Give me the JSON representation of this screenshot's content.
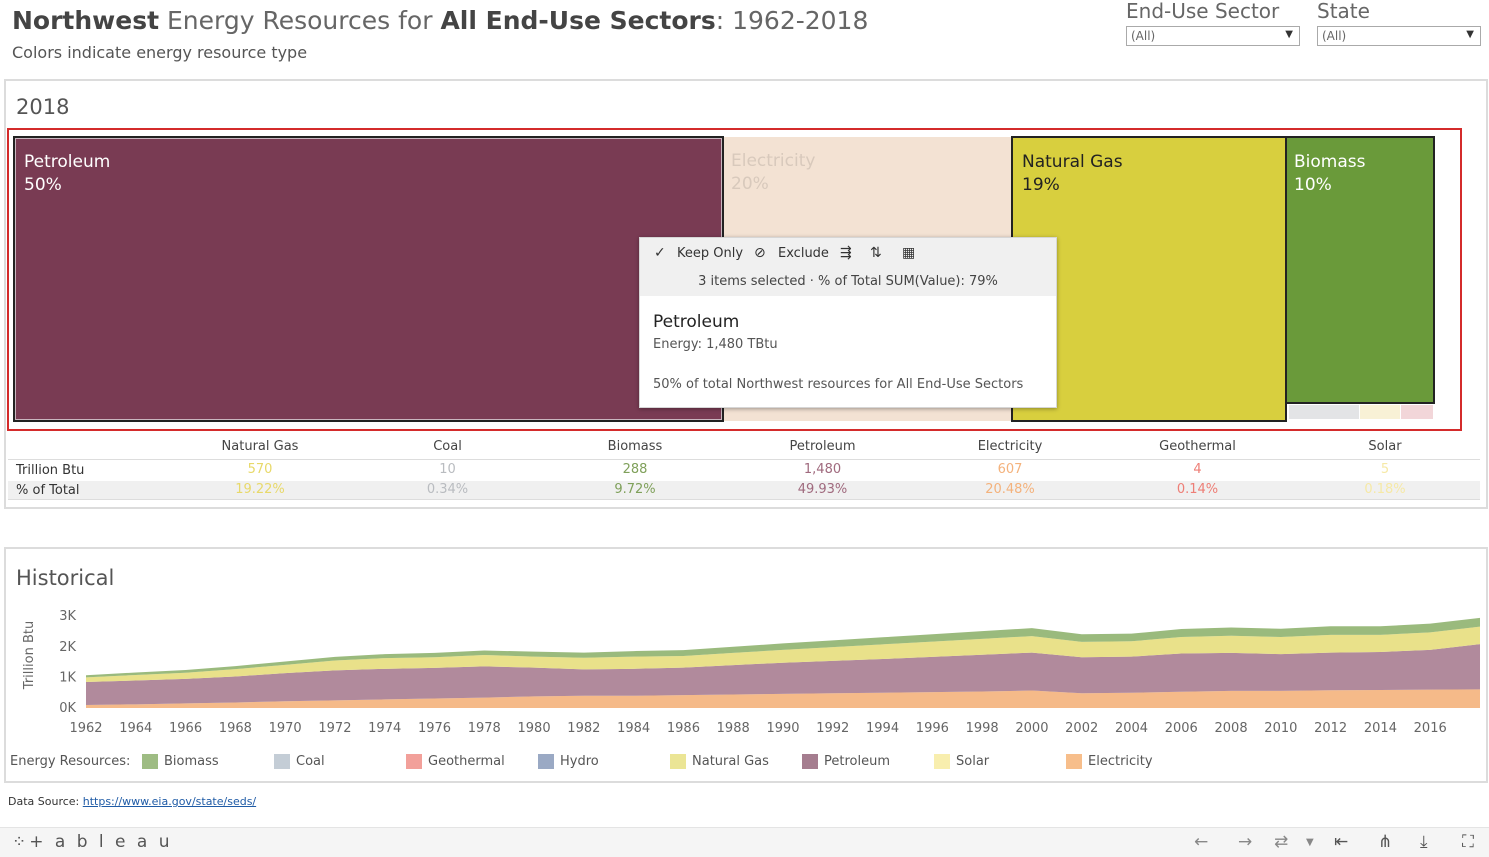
{
  "header": {
    "title_part1": "Northwest",
    "title_part2": " Energy Resources for ",
    "title_part3": "All End-Use Sectors",
    "title_part4": ": 1962-2018",
    "subtitle": "Colors indicate energy resource type"
  },
  "filters": {
    "end_use_sector": {
      "label": "End-Use Sector",
      "value": "(All)"
    },
    "state": {
      "label": "State",
      "value": "(All)"
    }
  },
  "treemap_panel": {
    "title": "2018",
    "tiles": [
      {
        "name": "Petroleum",
        "pct": "50%"
      },
      {
        "name": "Electricity",
        "pct": "20%"
      },
      {
        "name": "Natural Gas",
        "pct": "19%"
      },
      {
        "name": "Biomass",
        "pct": "10%"
      }
    ]
  },
  "tooltip": {
    "keep_only": "Keep Only",
    "exclude": "Exclude",
    "info": "3 items selected · % of Total SUM(Value): 79%",
    "heading": "Petroleum",
    "line": "Energy: 1,480 TBtu",
    "footer": "50% of total Northwest resources for All End-Use Sectors"
  },
  "summary_table": {
    "row_labels": [
      "Trillion Btu",
      "% of Total"
    ],
    "columns": [
      {
        "name": "Natural Gas",
        "btu": "570",
        "pct": "19.22%",
        "color": "#e8d96a"
      },
      {
        "name": "Coal",
        "btu": "10",
        "pct": "0.34%",
        "color": "#b9bcc0"
      },
      {
        "name": "Biomass",
        "btu": "288",
        "pct": "9.72%",
        "color": "#7fa05a"
      },
      {
        "name": "Petroleum",
        "btu": "1,480",
        "pct": "49.93%",
        "color": "#a06a7e"
      },
      {
        "name": "Electricity",
        "btu": "607",
        "pct": "20.48%",
        "color": "#f4b27c"
      },
      {
        "name": "Geothermal",
        "btu": "4",
        "pct": "0.14%",
        "color": "#ee7e76"
      },
      {
        "name": "Solar",
        "btu": "5",
        "pct": "0.18%",
        "color": "#f6e9a6"
      }
    ]
  },
  "historical_panel": {
    "title": "Historical",
    "y_axis_label": "Trillion Btu",
    "legend_title": "Energy Resources:"
  },
  "chart_data": {
    "type": "area",
    "title": "Historical",
    "xlabel": "",
    "ylabel": "Trillion Btu",
    "ylim": [
      0,
      3300
    ],
    "y_ticks": [
      "0K",
      "1K",
      "2K",
      "3K"
    ],
    "x_ticks": [
      "1962",
      "1964",
      "1966",
      "1968",
      "1970",
      "1972",
      "1974",
      "1976",
      "1978",
      "1980",
      "1982",
      "1984",
      "1986",
      "1988",
      "1990",
      "1992",
      "1994",
      "1996",
      "1998",
      "2000",
      "2002",
      "2004",
      "2006",
      "2008",
      "2010",
      "2012",
      "2014",
      "2016"
    ],
    "x": [
      1962,
      1964,
      1966,
      1968,
      1970,
      1972,
      1974,
      1976,
      1978,
      1980,
      1982,
      1984,
      1986,
      1988,
      1990,
      1992,
      1994,
      1996,
      1998,
      2000,
      2002,
      2004,
      2006,
      2008,
      2010,
      2012,
      2014,
      2016,
      2018
    ],
    "series": [
      {
        "name": "Electricity",
        "color": "#f4b27c",
        "values": [
          100,
          120,
          150,
          180,
          220,
          250,
          280,
          310,
          340,
          380,
          400,
          400,
          420,
          440,
          460,
          480,
          500,
          520,
          540,
          570,
          480,
          500,
          530,
          560,
          560,
          580,
          590,
          600,
          607
        ]
      },
      {
        "name": "Petroleum",
        "color": "#a87d91",
        "values": [
          750,
          780,
          800,
          850,
          920,
          980,
          1000,
          1000,
          1020,
          940,
          860,
          880,
          900,
          960,
          1020,
          1060,
          1100,
          1150,
          1200,
          1240,
          1180,
          1180,
          1250,
          1240,
          1200,
          1230,
          1240,
          1300,
          1480
        ]
      },
      {
        "name": "Natural Gas",
        "color": "#e7de7d",
        "values": [
          150,
          180,
          200,
          240,
          270,
          320,
          350,
          350,
          370,
          360,
          380,
          400,
          380,
          400,
          420,
          450,
          480,
          500,
          520,
          540,
          500,
          500,
          540,
          560,
          560,
          580,
          560,
          570,
          570
        ]
      },
      {
        "name": "Biomass",
        "color": "#8fb26f",
        "values": [
          70,
          80,
          90,
          100,
          110,
          120,
          130,
          140,
          150,
          160,
          170,
          180,
          190,
          200,
          210,
          220,
          230,
          240,
          250,
          260,
          250,
          250,
          260,
          270,
          270,
          280,
          280,
          285,
          288
        ]
      }
    ],
    "legend": [
      "Biomass",
      "Coal",
      "Geothermal",
      "Hydro",
      "Natural Gas",
      "Petroleum",
      "Solar",
      "Electricity"
    ],
    "legend_colors": [
      "#9ebc83",
      "#c4cdd6",
      "#f2a09a",
      "#9aa9c4",
      "#ebe595",
      "#a57d8f",
      "#f8eeae",
      "#f7be8b"
    ]
  },
  "source": {
    "label": "Data Source: ",
    "link": "https://www.eia.gov/state/seds/"
  },
  "footer": {
    "logo": "+ a b l e a u"
  }
}
